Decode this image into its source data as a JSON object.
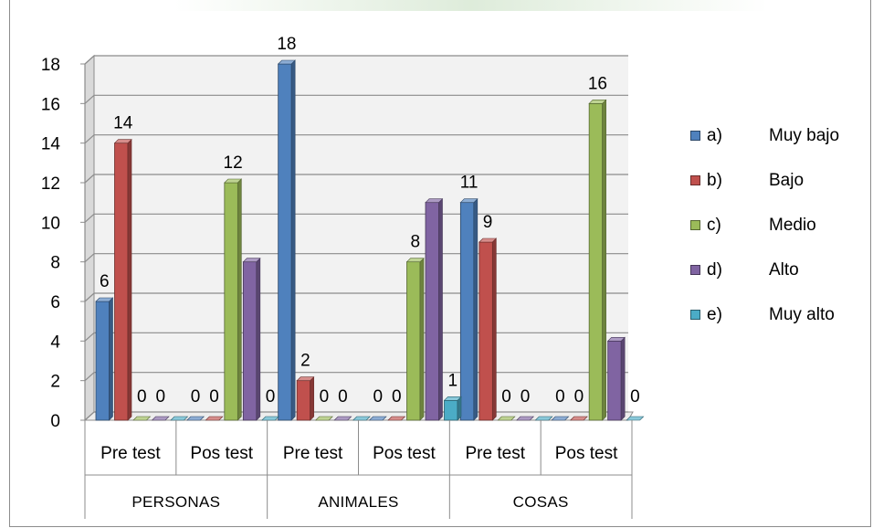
{
  "chart_data": {
    "type": "bar",
    "style": "3d-clustered-column",
    "groups": [
      "PERSONAS",
      "ANIMALES",
      "COSAS"
    ],
    "categories": [
      "Pre test",
      "Pos test",
      "Pre test",
      "Pos test",
      "Pre test",
      "Pos test"
    ],
    "series": [
      {
        "key": "a)",
        "name": "Muy bajo",
        "color": "#4f81bd",
        "values": [
          6,
          0,
          18,
          0,
          11,
          0
        ]
      },
      {
        "key": "b)",
        "name": "Bajo",
        "color": "#c0504d",
        "values": [
          14,
          0,
          2,
          0,
          9,
          0
        ]
      },
      {
        "key": "c)",
        "name": "Medio",
        "color": "#9bbb59",
        "values": [
          0,
          12,
          0,
          8,
          0,
          16
        ]
      },
      {
        "key": "d)",
        "name": "Alto",
        "color": "#8064a2",
        "values": [
          0,
          8,
          0,
          11,
          0,
          4
        ]
      },
      {
        "key": "e)",
        "name": "Muy alto",
        "color": "#4bacc6",
        "values": [
          0,
          0,
          0,
          1,
          0,
          0
        ]
      }
    ],
    "data_labels": [
      {
        "category_index": 0,
        "series_index": 0,
        "text": "6"
      },
      {
        "category_index": 0,
        "series_index": 1,
        "text": "14"
      },
      {
        "category_index": 0,
        "series_index": 2,
        "text": "0"
      },
      {
        "category_index": 0,
        "series_index": 3,
        "text": "0"
      },
      {
        "category_index": 1,
        "series_index": 0,
        "text": "0"
      },
      {
        "category_index": 1,
        "series_index": 1,
        "text": "0"
      },
      {
        "category_index": 1,
        "series_index": 2,
        "text": "12"
      },
      {
        "category_index": 1,
        "series_index": 4,
        "text": "0"
      },
      {
        "category_index": 2,
        "series_index": 0,
        "text": "18"
      },
      {
        "category_index": 2,
        "series_index": 1,
        "text": "2"
      },
      {
        "category_index": 2,
        "series_index": 2,
        "text": "0"
      },
      {
        "category_index": 2,
        "series_index": 3,
        "text": "0"
      },
      {
        "category_index": 3,
        "series_index": 0,
        "text": "0"
      },
      {
        "category_index": 3,
        "series_index": 1,
        "text": "0"
      },
      {
        "category_index": 3,
        "series_index": 2,
        "text": "8"
      },
      {
        "category_index": 3,
        "series_index": 4,
        "text": "1"
      },
      {
        "category_index": 4,
        "series_index": 0,
        "text": "11"
      },
      {
        "category_index": 4,
        "series_index": 1,
        "text": "9"
      },
      {
        "category_index": 4,
        "series_index": 2,
        "text": "0"
      },
      {
        "category_index": 4,
        "series_index": 3,
        "text": "0"
      },
      {
        "category_index": 5,
        "series_index": 0,
        "text": "0"
      },
      {
        "category_index": 5,
        "series_index": 1,
        "text": "0"
      },
      {
        "category_index": 5,
        "series_index": 2,
        "text": "16"
      },
      {
        "category_index": 5,
        "series_index": 4,
        "text": "0"
      }
    ],
    "ylim": [
      0,
      18
    ],
    "yticks": [
      "0",
      "2",
      "4",
      "6",
      "8",
      "10",
      "12",
      "14",
      "16",
      "18"
    ],
    "grid": true,
    "legend_position": "right",
    "title": "",
    "xlabel": "",
    "ylabel": ""
  }
}
